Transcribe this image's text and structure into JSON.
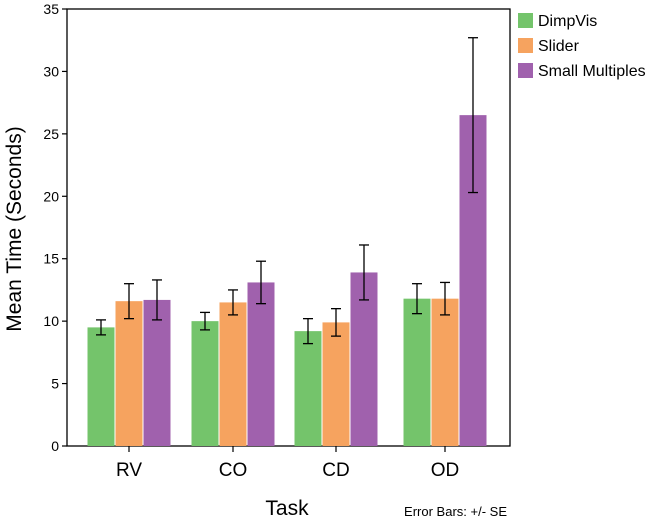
{
  "chart_data": {
    "type": "bar",
    "categories": [
      "RV",
      "CO",
      "CD",
      "OD"
    ],
    "series": [
      {
        "name": "DimpVis",
        "color": "#74c46b",
        "values": [
          9.5,
          10.0,
          9.2,
          11.8
        ],
        "se": [
          0.6,
          0.7,
          1.0,
          1.2
        ]
      },
      {
        "name": "Slider",
        "color": "#f6a35f",
        "values": [
          11.6,
          11.5,
          9.9,
          11.8
        ],
        "se": [
          1.4,
          1.0,
          1.1,
          1.3
        ]
      },
      {
        "name": "Small Multiples",
        "color": "#a061ad",
        "values": [
          11.7,
          13.1,
          13.9,
          26.5
        ],
        "se": [
          1.6,
          1.7,
          2.2,
          6.2
        ]
      }
    ],
    "xlabel": "Task",
    "ylabel": "Mean Time (Seconds)",
    "ylim": [
      0,
      35
    ],
    "yticks": [
      0,
      5,
      10,
      15,
      20,
      25,
      30,
      35
    ],
    "grid": false,
    "legend_position": "top-right",
    "note": "Error Bars: +/- SE"
  }
}
